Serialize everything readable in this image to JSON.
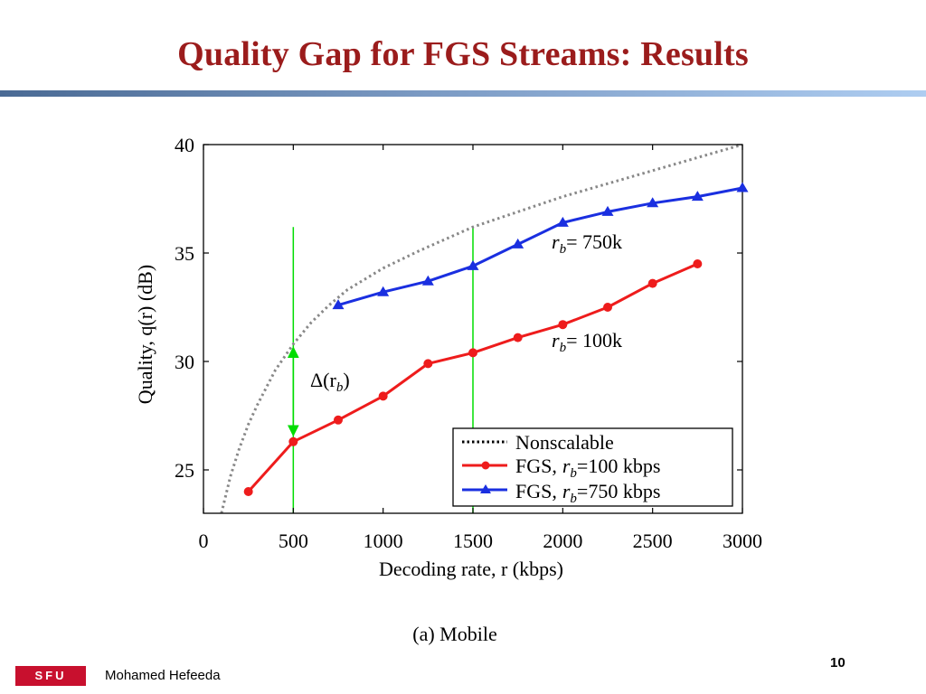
{
  "slide": {
    "title": "Quality Gap for FGS Streams: Results",
    "author": "Mohamed Hefeeda",
    "page_number": "10",
    "logo_text": "SFU"
  },
  "colors": {
    "title": "#9b1c1c",
    "fgs_100": "#ee1c1c",
    "fgs_750": "#1a2fe0",
    "marker_lines": "#00dd00"
  },
  "chart_data": {
    "type": "line",
    "caption": "(a) Mobile",
    "xlabel": "Decoding rate, r (kbps)",
    "ylabel": "Quality, q(r) (dB)",
    "xlim": [
      0,
      3000
    ],
    "ylim": [
      23,
      40
    ],
    "xticks": [
      0,
      500,
      1000,
      1500,
      2000,
      2500,
      3000
    ],
    "yticks": [
      25,
      30,
      35,
      40
    ],
    "legend_position": "bottom-right",
    "series": [
      {
        "name": "Nonscalable",
        "style": "dotted",
        "color": "#888888",
        "x": [
          100,
          150,
          200,
          250,
          300,
          400,
          500,
          600,
          700,
          800,
          1000,
          1200,
          1500,
          1750,
          2000,
          2250,
          2500,
          2750,
          3000
        ],
        "y": [
          23.0,
          24.7,
          26.0,
          27.1,
          28.0,
          29.6,
          30.8,
          31.8,
          32.6,
          33.3,
          34.3,
          35.1,
          36.2,
          36.9,
          37.6,
          38.2,
          38.8,
          39.4,
          40.0
        ]
      },
      {
        "name": "FGS, r_b=100 kbps",
        "legend_prefix": "FGS,",
        "legend_suffix": "=100 kbps",
        "style": "line-circle",
        "color": "#ee1c1c",
        "x": [
          250,
          500,
          750,
          1000,
          1250,
          1500,
          1750,
          2000,
          2250,
          2500,
          2750
        ],
        "y": [
          24.0,
          26.3,
          27.3,
          28.4,
          29.9,
          30.4,
          31.1,
          31.7,
          32.5,
          33.6,
          34.5
        ]
      },
      {
        "name": "FGS, r_b=750 kbps",
        "legend_prefix": "FGS,",
        "legend_suffix": "=750 kbps",
        "style": "line-triangle",
        "color": "#1a2fe0",
        "x": [
          750,
          1000,
          1250,
          1500,
          1750,
          2000,
          2250,
          2500,
          2750,
          3000
        ],
        "y": [
          32.6,
          33.2,
          33.7,
          34.4,
          35.4,
          36.4,
          36.9,
          37.3,
          37.6,
          38.0
        ]
      }
    ],
    "annotations": {
      "rb_750_suffix": "= 750k",
      "rb_100_suffix": "= 100k",
      "delta_label": "Δ(r",
      "delta_close": ")",
      "sub_b": "b",
      "legend_nonscalable": "Nonscalable",
      "vlines_x": [
        500,
        1500
      ],
      "delta_arrow": {
        "x": 500,
        "y_from": 26.3,
        "y_to": 30.6
      }
    }
  }
}
